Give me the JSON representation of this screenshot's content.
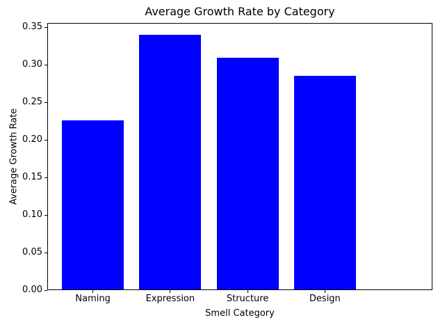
{
  "chart_data": {
    "type": "bar",
    "title": "Average Growth Rate by Category",
    "xlabel": "Smell Category",
    "ylabel": "Average Growth Rate",
    "categories": [
      "Naming",
      "Expression",
      "Structure",
      "Design"
    ],
    "values": [
      0.226,
      0.34,
      0.31,
      0.286
    ],
    "bar_color": "#0000ff",
    "axis_color": "#000000",
    "text_color": "#000000",
    "background_color": "#ffffff",
    "ylim": [
      0,
      0.356
    ],
    "yticks": [
      0.0,
      0.05,
      0.1,
      0.15,
      0.2,
      0.25,
      0.3,
      0.35
    ],
    "ytick_labels": [
      "0.00",
      "0.05",
      "0.10",
      "0.15",
      "0.20",
      "0.25",
      "0.30",
      "0.35"
    ],
    "bar_width_fraction": 0.8,
    "grid": false,
    "legend": "none"
  }
}
